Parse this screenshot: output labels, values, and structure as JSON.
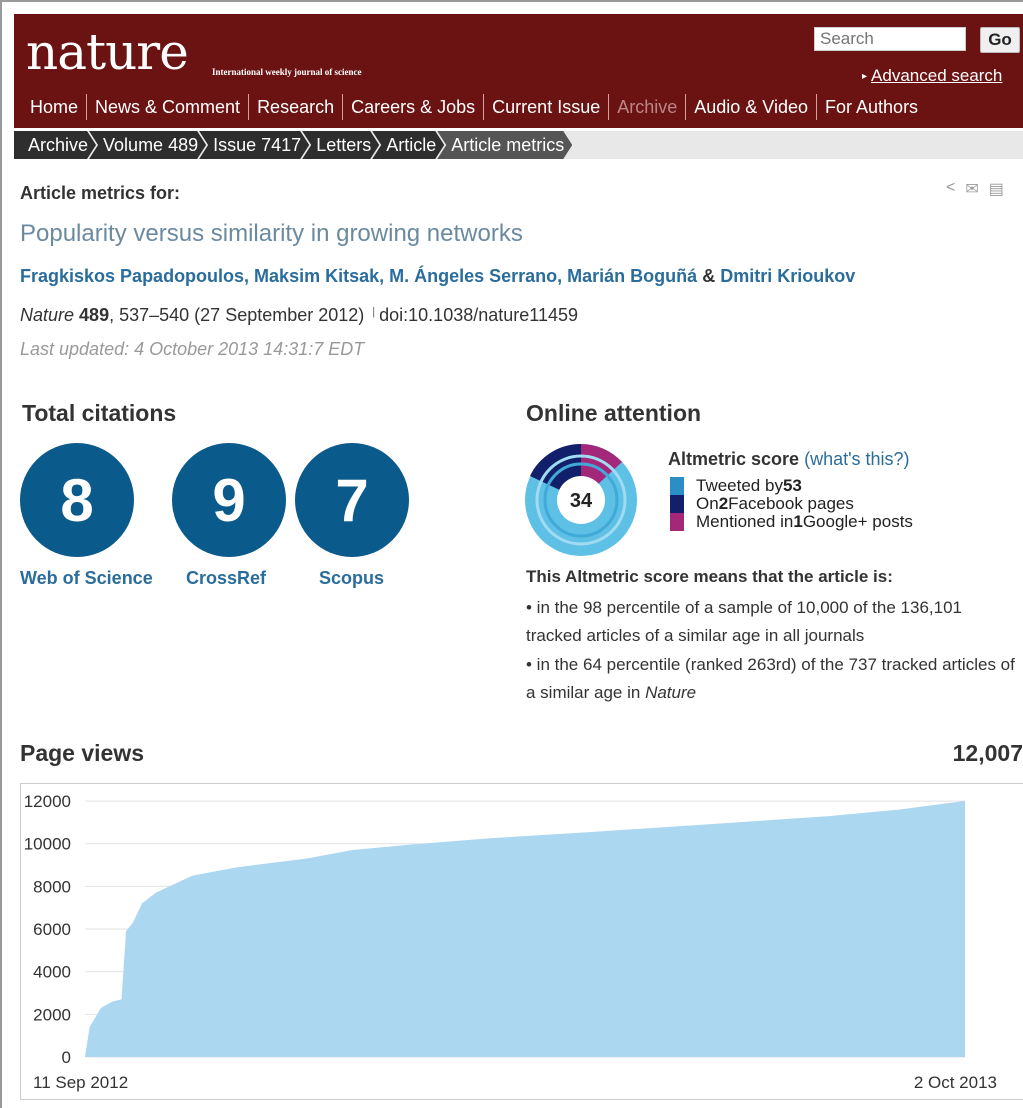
{
  "header": {
    "logo": "nature",
    "tagline": "International weekly journal of science",
    "search_placeholder": "Search",
    "go_label": "Go",
    "advanced_search": "Advanced search",
    "nav": [
      "Home",
      "News & Comment",
      "Research",
      "Careers & Jobs",
      "Current Issue",
      "Archive",
      "Audio & Video",
      "For Authors"
    ]
  },
  "breadcrumb": [
    "Archive",
    "Volume 489",
    "Issue 7417",
    "Letters",
    "Article",
    "Article metrics"
  ],
  "article": {
    "metrics_for": "Article metrics for:",
    "title": "Popularity versus similarity in growing networks",
    "authors": "Fragkiskos Papadopoulos, Maksim Kitsak, M. Ángeles Serrano, Marián Boguñá",
    "amp": "&",
    "last_author": "Dmitri Krioukov",
    "journal": "Nature",
    "volume": "489",
    "pages_date": ", 537–540 (27 September 2012)",
    "doi": "doi:10.1038/nature11459",
    "last_updated": "Last updated: 4 October 2013 14:31:7 EDT"
  },
  "citations": {
    "heading": "Total citations",
    "items": [
      {
        "value": "8",
        "label": "Web of Science"
      },
      {
        "value": "9",
        "label": "CrossRef"
      },
      {
        "value": "7",
        "label": "Scopus"
      }
    ]
  },
  "attention": {
    "heading": "Online attention",
    "score": "34",
    "altmetric_label": "Altmetric score",
    "whats_this": "(what's this?)",
    "legend": [
      {
        "pre": "Tweeted by ",
        "num": "53",
        "post": "",
        "color": "#2b8fc4"
      },
      {
        "pre": "On ",
        "num": "2",
        "post": " Facebook pages",
        "color": "#12206b"
      },
      {
        "pre": "Mentioned in ",
        "num": "1",
        "post": " Google+ posts",
        "color": "#a3287a"
      }
    ],
    "means_heading": "This Altmetric score means that the article is:",
    "bullet1": "• in the 98 percentile of a sample of 10,000 of the 136,101 tracked articles of a similar age in all journals",
    "bullet2_pre": "• in the 64 percentile (ranked 263rd) of the 737 tracked articles of a similar age in ",
    "bullet2_journal": "Nature"
  },
  "pageviews": {
    "heading": "Page views",
    "total": "12,007"
  },
  "chart_data": {
    "type": "area",
    "title": "",
    "xlabel": "",
    "ylabel": "",
    "x_start_label": "11 Sep 2012",
    "x_end_label": "2 Oct 2013",
    "ylim": [
      0,
      12800
    ],
    "yticks": [
      0,
      2000,
      4000,
      6000,
      8000,
      10000,
      12000
    ],
    "ytick_labels": [
      "0",
      "2000",
      "4000",
      "6000",
      "8000",
      "10000",
      "12000"
    ],
    "grid": true,
    "color": "#acd7f1",
    "x": [
      "2012-09-11",
      "2012-09-13",
      "2012-09-18",
      "2012-09-23",
      "2012-09-27",
      "2012-09-29",
      "2012-10-02",
      "2012-10-06",
      "2012-10-12",
      "2012-10-20",
      "2012-10-28",
      "2012-11-07",
      "2012-11-17",
      "2012-12-02",
      "2012-12-17",
      "2013-01-06",
      "2013-01-31",
      "2013-03-07",
      "2013-04-21",
      "2013-06-10",
      "2013-08-04",
      "2013-09-03",
      "2013-10-02"
    ],
    "values": [
      0,
      1400,
      2300,
      2600,
      2700,
      5900,
      6300,
      7200,
      7700,
      8100,
      8500,
      8700,
      8900,
      9100,
      9300,
      9700,
      9950,
      10250,
      10550,
      10900,
      11300,
      11600,
      12007
    ]
  }
}
